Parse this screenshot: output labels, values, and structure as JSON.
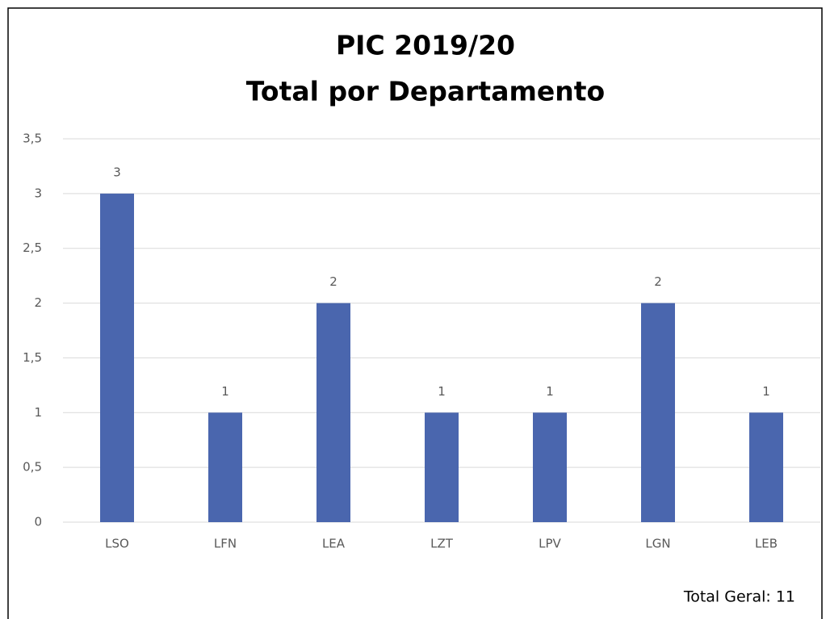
{
  "chart_data": {
    "type": "bar",
    "title": "PIC 2019/20",
    "subtitle": "Total por Departamento",
    "categories": [
      "LSO",
      "LFN",
      "LEA",
      "LZT",
      "LPV",
      "LGN",
      "LEB"
    ],
    "values": [
      3,
      1,
      2,
      1,
      1,
      2,
      1
    ],
    "color": "#4a66ae",
    "ylim": [
      0,
      3.5
    ],
    "yticks": [
      0,
      {
        "value": 0.5,
        "label": "0,5"
      },
      1,
      {
        "value": 1.5,
        "label": "1,5"
      },
      2,
      {
        "value": 2.5,
        "label": "2,5"
      },
      3,
      {
        "value": 3.5,
        "label": "3,5"
      }
    ],
    "grid": true,
    "annotation": "Total Geral: 11"
  }
}
